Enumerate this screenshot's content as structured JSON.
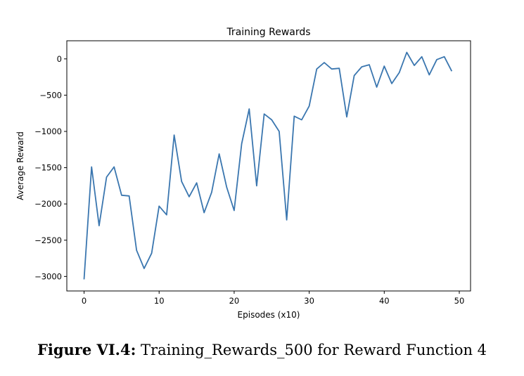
{
  "chart_data": {
    "type": "line",
    "title": "Training Rewards",
    "xlabel": "Episodes (x10)",
    "ylabel": "Average Reward",
    "xlim": [
      -2.3,
      51.5
    ],
    "ylim": [
      -3200,
      250
    ],
    "xticks": [
      0,
      10,
      20,
      30,
      40,
      50
    ],
    "yticks": [
      0,
      -500,
      -1000,
      -1500,
      -2000,
      -2500,
      -3000
    ],
    "xtick_labels": [
      "0",
      "10",
      "20",
      "30",
      "40",
      "50"
    ],
    "ytick_labels": [
      "0",
      "−500",
      "−1000",
      "−1500",
      "−2000",
      "−2500",
      "−3000"
    ],
    "grid": false,
    "series": [
      {
        "color": "#3a76af",
        "x": [
          0,
          1,
          2,
          3,
          4,
          5,
          6,
          7,
          8,
          9,
          10,
          11,
          12,
          13,
          14,
          15,
          16,
          17,
          18,
          19,
          20,
          21,
          22,
          23,
          24,
          25,
          26,
          27,
          28,
          29,
          30,
          31,
          32,
          33,
          34,
          35,
          36,
          37,
          38,
          39,
          40,
          41,
          42,
          43,
          44,
          45,
          46,
          47,
          48,
          49
        ],
        "y": [
          -3040,
          -1490,
          -2300,
          -1630,
          -1490,
          -1880,
          -1890,
          -2640,
          -2890,
          -2680,
          -2030,
          -2150,
          -1050,
          -1690,
          -1900,
          -1710,
          -2120,
          -1840,
          -1310,
          -1770,
          -2090,
          -1170,
          -690,
          -1750,
          -760,
          -840,
          -1000,
          -2220,
          -790,
          -840,
          -650,
          -140,
          -50,
          -140,
          -130,
          -800,
          -230,
          -110,
          -80,
          -390,
          -100,
          -340,
          -190,
          90,
          -90,
          30,
          -220,
          -10,
          30,
          -170
        ]
      }
    ]
  },
  "caption": {
    "label": "Figure VI.4:",
    "text": " Training_Rewards_500 for Reward Function 4"
  }
}
